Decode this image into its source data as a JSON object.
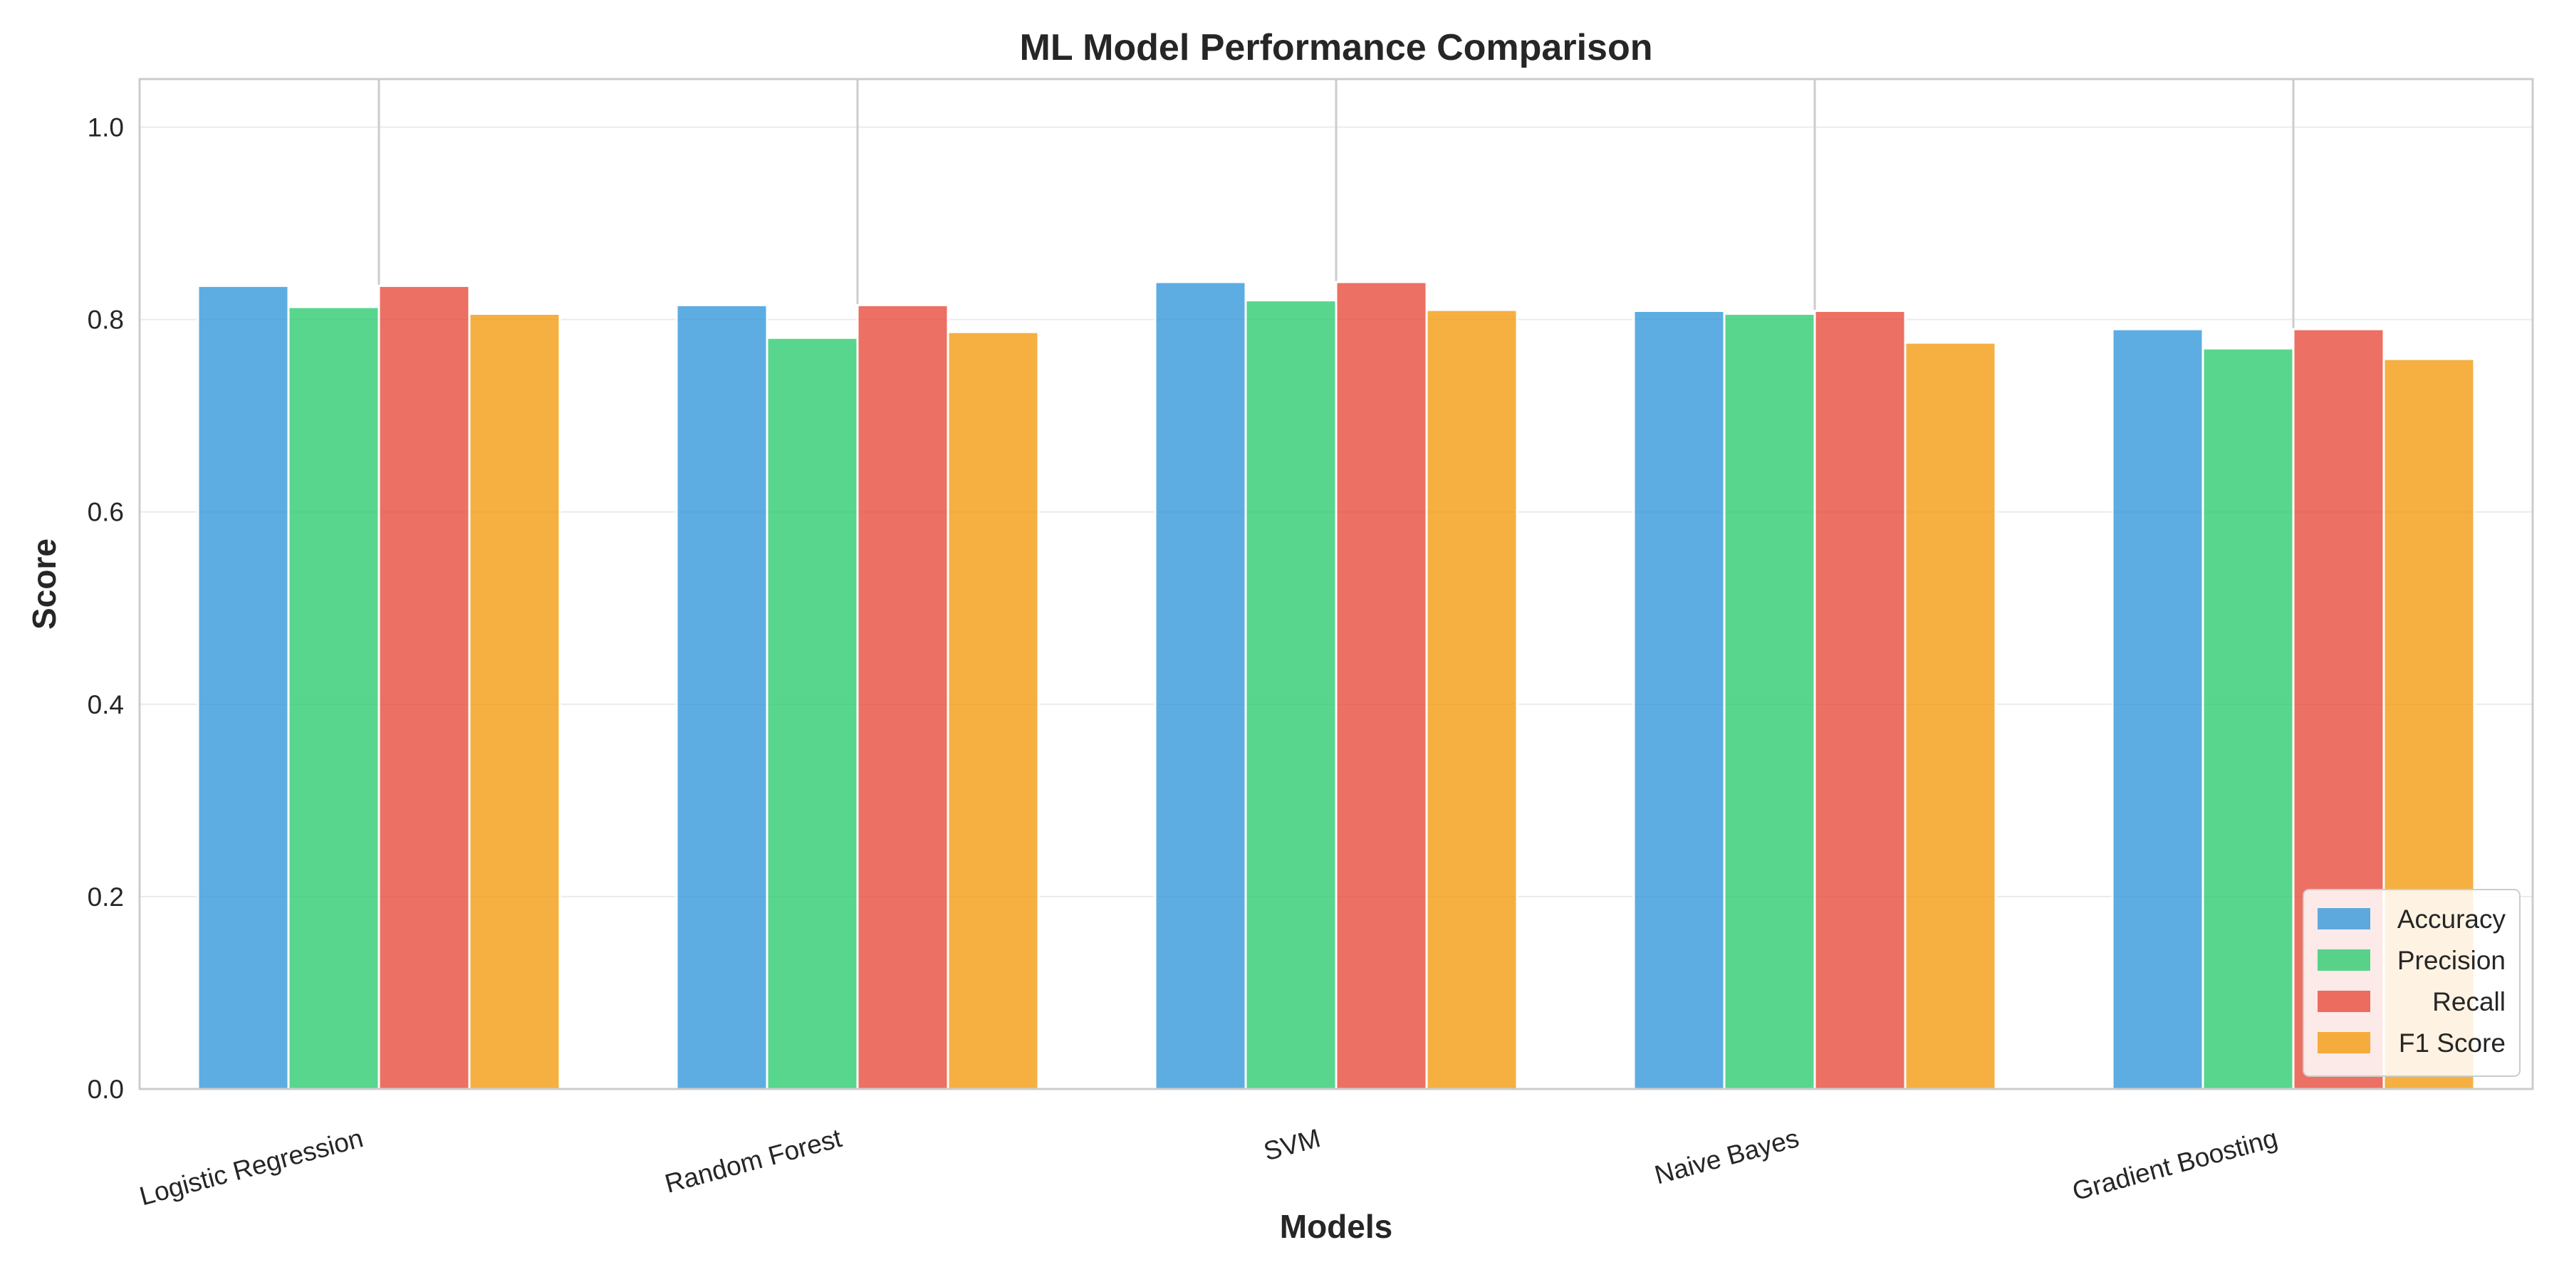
{
  "chart_data": {
    "type": "bar",
    "title": "ML Model Performance Comparison",
    "xlabel": "Models",
    "ylabel": "Score",
    "ylim": [
      0,
      1.05
    ],
    "yticks": [
      0.0,
      0.2,
      0.4,
      0.6,
      0.8,
      1.0
    ],
    "ytick_labels": [
      "0.0",
      "0.2",
      "0.4",
      "0.6",
      "0.8",
      "1.0"
    ],
    "grid": true,
    "legend_position": "bottom-right",
    "categories": [
      "Logistic Regression",
      "Random Forest",
      "SVM",
      "Naive Bayes",
      "Gradient Boosting"
    ],
    "series": [
      {
        "name": "Accuracy",
        "color": "#3498db",
        "values": [
          0.835,
          0.815,
          0.839,
          0.809,
          0.79
        ]
      },
      {
        "name": "Precision",
        "color": "#2ecc71",
        "values": [
          0.813,
          0.781,
          0.82,
          0.806,
          0.77
        ]
      },
      {
        "name": "Recall",
        "color": "#e74c3c",
        "values": [
          0.835,
          0.815,
          0.839,
          0.809,
          0.79
        ]
      },
      {
        "name": "F1 Score",
        "color": "#f39c12",
        "values": [
          0.806,
          0.787,
          0.81,
          0.776,
          0.759
        ]
      }
    ]
  }
}
